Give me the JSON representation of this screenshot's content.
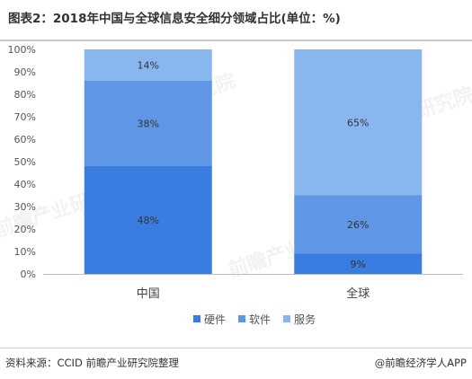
{
  "title": "图表2：2018年中国与全球信息安全细分领域占比(单位：%)",
  "source": "资料来源：CCID 前瞻产业研究院整理",
  "brand": "@前瞻经济学人APP",
  "watermark": "前瞻产业研究院",
  "colors": {
    "硬件": "#3a7de0",
    "软件": "#5f97e6",
    "服务": "#8ab6ef"
  },
  "chart_data": {
    "type": "bar",
    "stacked": true,
    "categories": [
      "中国",
      "全球"
    ],
    "series": [
      {
        "name": "硬件",
        "values": [
          48,
          9
        ]
      },
      {
        "name": "软件",
        "values": [
          38,
          26
        ]
      },
      {
        "name": "服务",
        "values": [
          14,
          65
        ]
      }
    ],
    "value_labels": [
      [
        "48%",
        "9%"
      ],
      [
        "38%",
        "26%"
      ],
      [
        "14%",
        "65%"
      ]
    ],
    "ylim": [
      0,
      100
    ],
    "yticks": [
      "0%",
      "10%",
      "20%",
      "30%",
      "40%",
      "50%",
      "60%",
      "70%",
      "80%",
      "90%",
      "100%"
    ],
    "legend_position": "bottom",
    "grid": false
  }
}
